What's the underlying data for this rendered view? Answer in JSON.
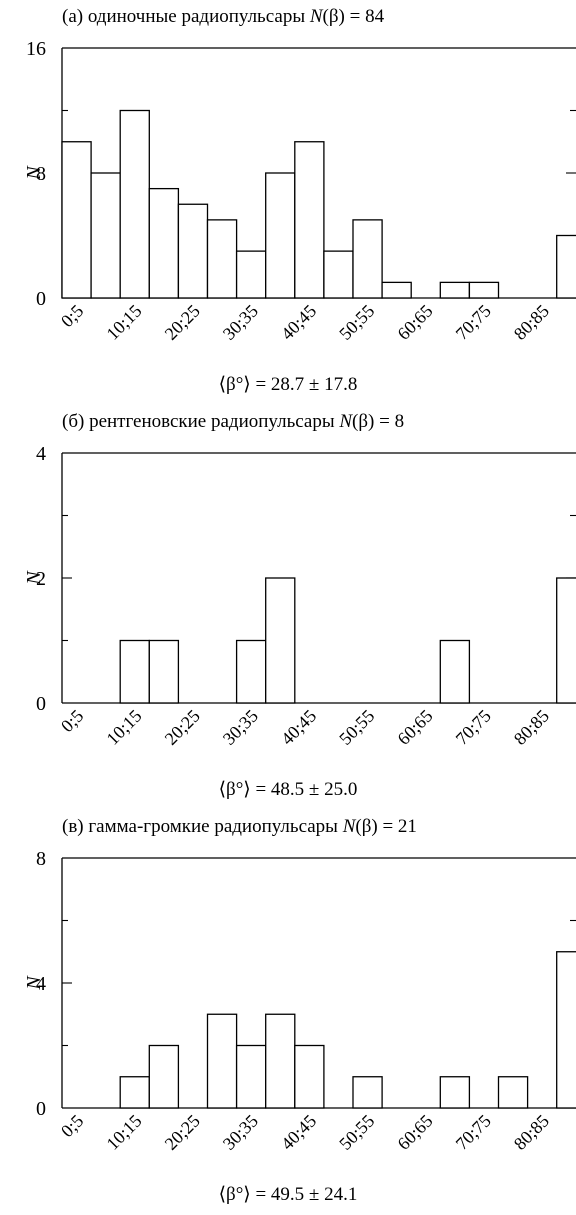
{
  "chart_data": [
    {
      "type": "bar",
      "title_prefix": "(а) одиночные радиопульсары ",
      "title_n": "N",
      "title_suffix": "(β) = 84",
      "ylabel": "N",
      "mean_label": "⟨β°⟩ = 28.7 ± 17.8",
      "ylim": [
        0,
        16
      ],
      "yticks": [
        "0",
        "8",
        "16"
      ],
      "categories": [
        "0;5",
        "5;10",
        "10;15",
        "15;20",
        "20;25",
        "25;30",
        "30;35",
        "35;40",
        "40;45",
        "45;50",
        "50;55",
        "55;60",
        "60;65",
        "65;70",
        "70;75",
        "75;80",
        "80;85",
        "85;90"
      ],
      "tick_labels": [
        "0;5",
        "10;15",
        "20;25",
        "30;35",
        "40;45",
        "50;55",
        "60;65",
        "70;75",
        "80;85"
      ],
      "values": [
        10,
        8,
        12,
        7,
        6,
        5,
        3,
        8,
        10,
        3,
        5,
        1,
        0,
        1,
        1,
        0,
        0,
        4
      ]
    },
    {
      "type": "bar",
      "title_prefix": "(б) рентгеновские радиопульсары ",
      "title_n": "N",
      "title_suffix": "(β) = 8",
      "ylabel": "N",
      "mean_label": "⟨β°⟩ = 48.5 ± 25.0",
      "ylim": [
        0,
        4
      ],
      "yticks": [
        "0",
        "2",
        "4"
      ],
      "categories": [
        "0;5",
        "5;10",
        "10;15",
        "15;20",
        "20;25",
        "25;30",
        "30;35",
        "35;40",
        "40;45",
        "45;50",
        "50;55",
        "55;60",
        "60;65",
        "65;70",
        "70;75",
        "75;80",
        "80;85",
        "85;90"
      ],
      "tick_labels": [
        "0;5",
        "10;15",
        "20;25",
        "30;35",
        "40;45",
        "50;55",
        "60;65",
        "70;75",
        "80;85"
      ],
      "values": [
        0,
        0,
        1,
        1,
        0,
        0,
        1,
        2,
        0,
        0,
        0,
        0,
        0,
        1,
        0,
        0,
        0,
        2
      ]
    },
    {
      "type": "bar",
      "title_prefix": "(в) гамма-громкие радиопульсары ",
      "title_n": "N",
      "title_suffix": "(β) = 21",
      "ylabel": "N",
      "mean_label": "⟨β°⟩ = 49.5 ± 24.1",
      "ylim": [
        0,
        8
      ],
      "yticks": [
        "0",
        "4",
        "8"
      ],
      "categories": [
        "0;5",
        "5;10",
        "10;15",
        "15;20",
        "20;25",
        "25;30",
        "30;35",
        "35;40",
        "40;45",
        "45;50",
        "50;55",
        "55;60",
        "60;65",
        "65;70",
        "70;75",
        "75;80",
        "80;85",
        "85;90"
      ],
      "tick_labels": [
        "0;5",
        "10;15",
        "20;25",
        "30;35",
        "40;45",
        "50;55",
        "60;65",
        "70;75",
        "80;85"
      ],
      "values": [
        0,
        0,
        1,
        2,
        0,
        3,
        2,
        3,
        2,
        0,
        1,
        0,
        0,
        1,
        0,
        1,
        0,
        5
      ]
    }
  ]
}
